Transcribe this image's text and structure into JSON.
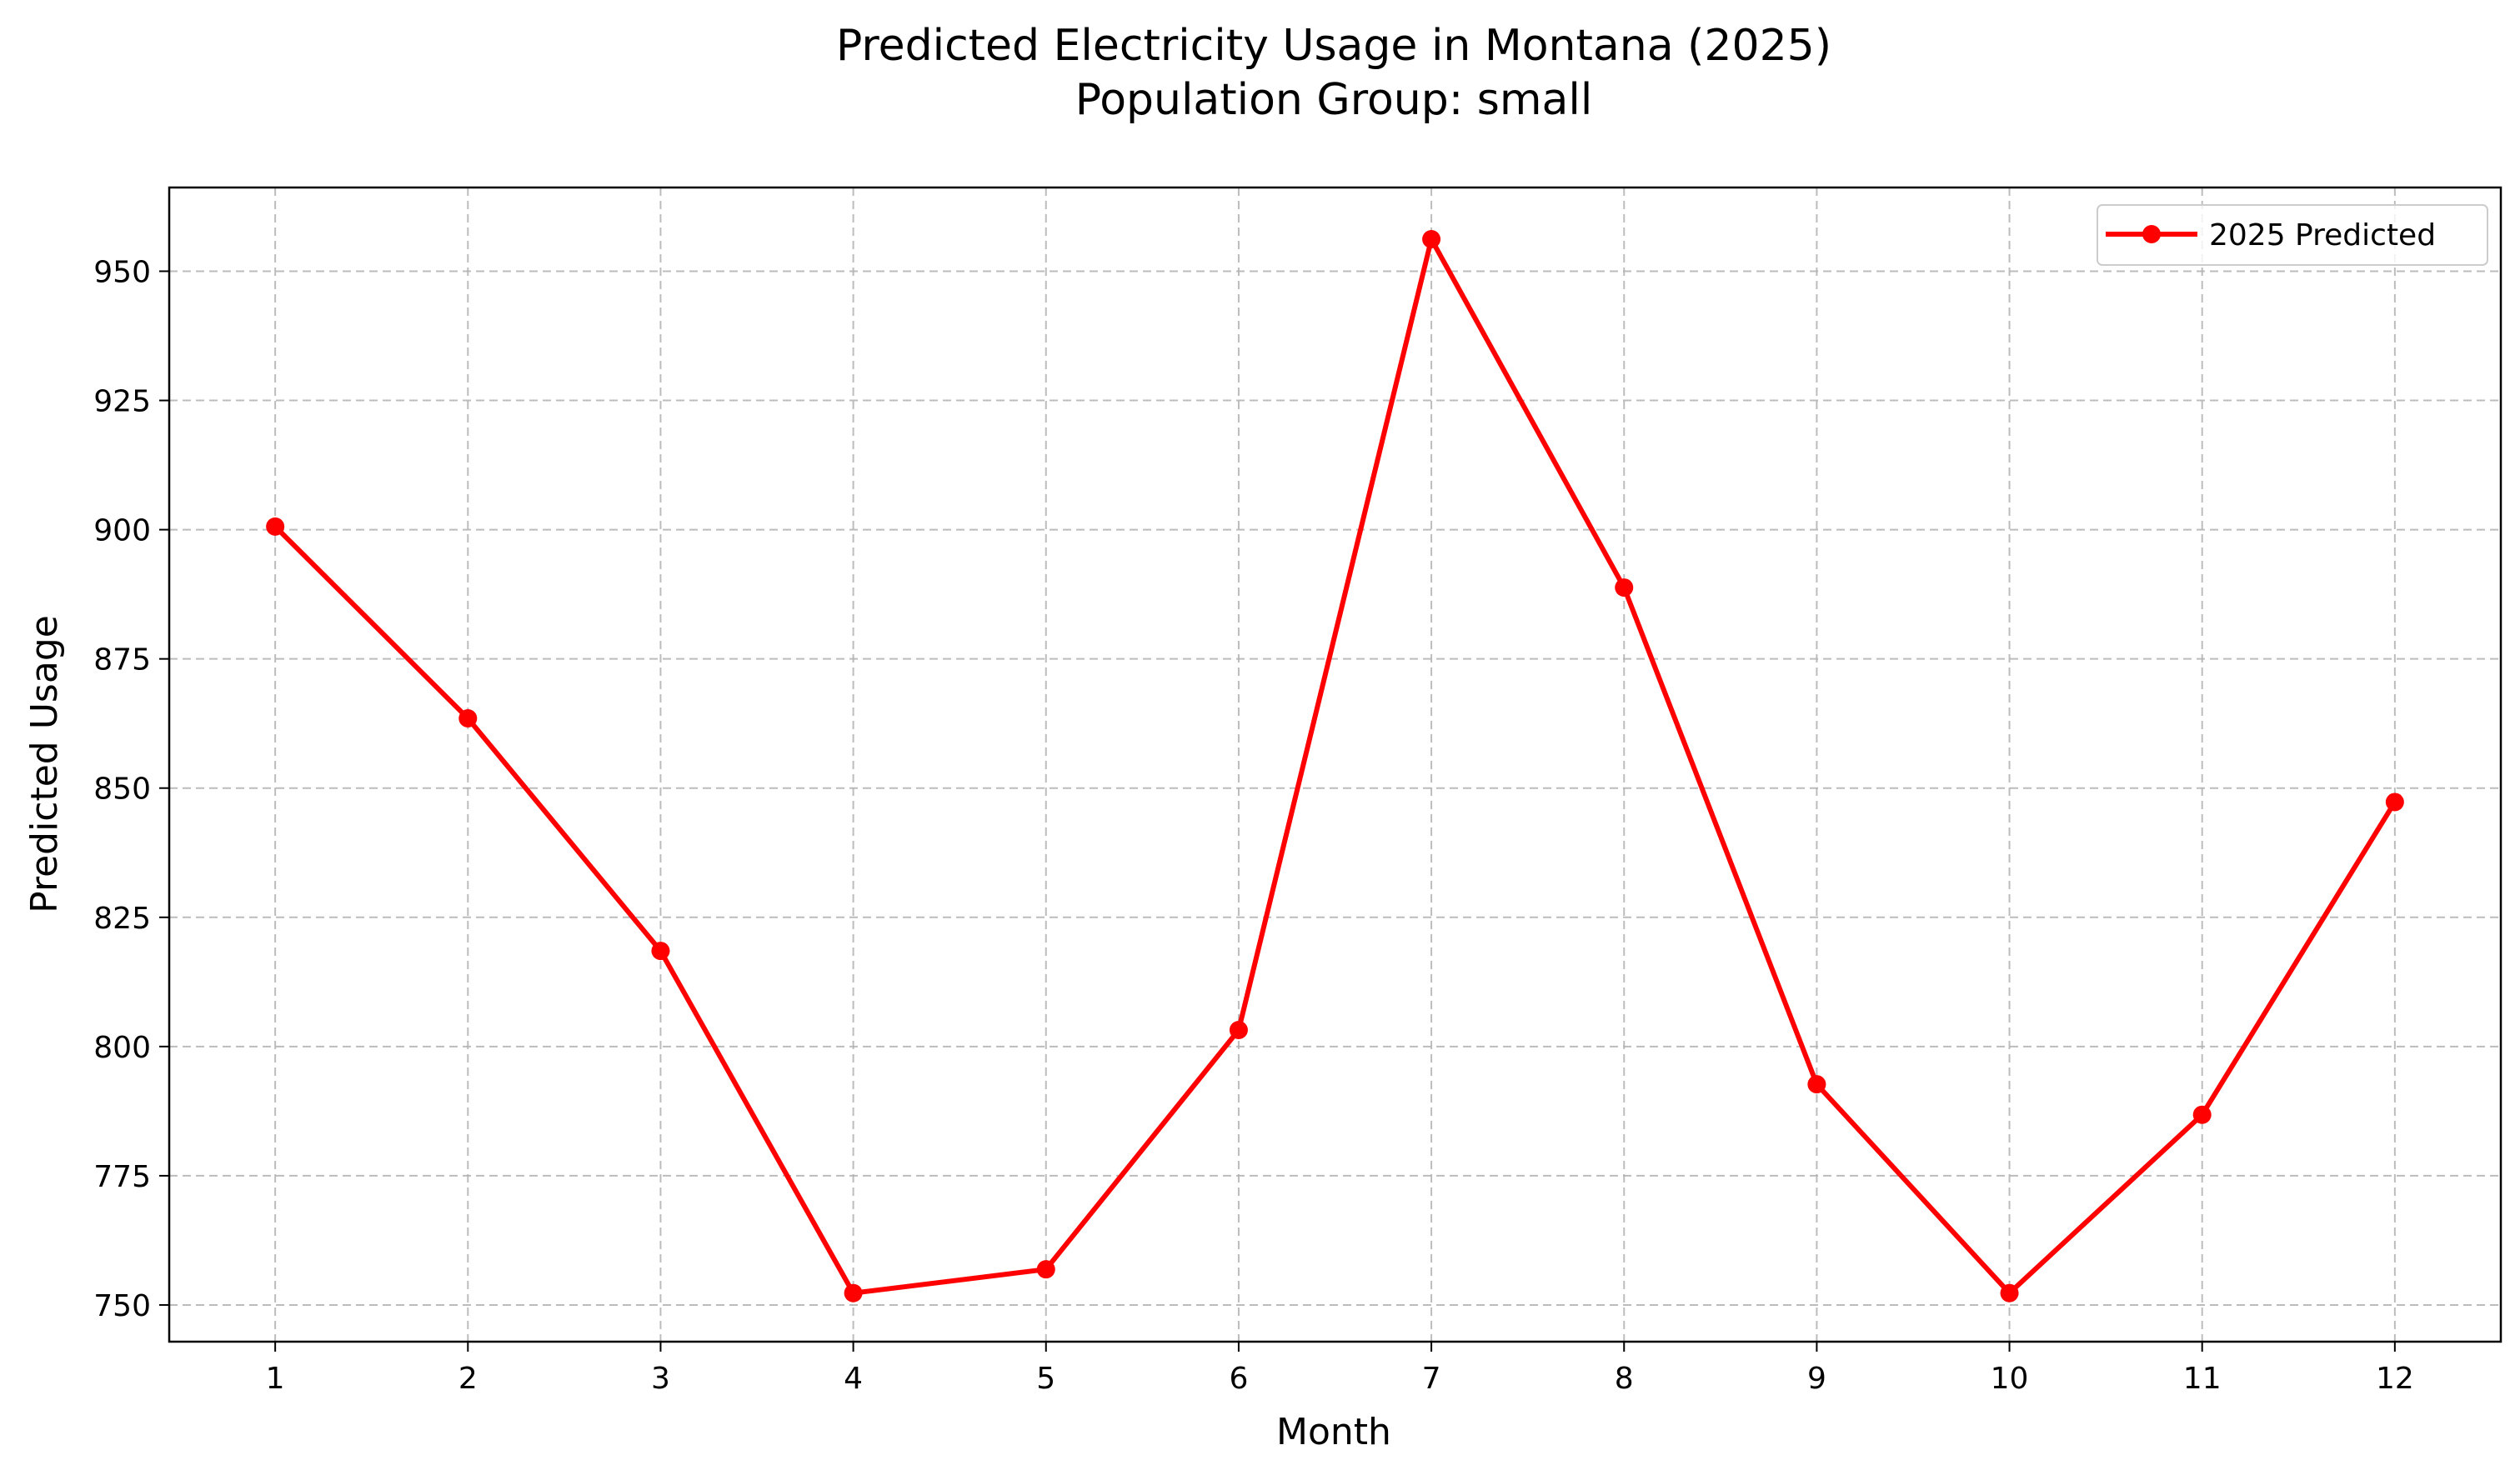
{
  "chart_data": {
    "type": "line",
    "title": "Predicted Electricity Usage in Montana (2025)",
    "subtitle": "Population Group: small",
    "xlabel": "Month",
    "ylabel": "Predicted Usage",
    "x": [
      1,
      2,
      3,
      4,
      5,
      6,
      7,
      8,
      9,
      10,
      11,
      12
    ],
    "x_ticks": [
      "1",
      "2",
      "3",
      "4",
      "5",
      "6",
      "7",
      "8",
      "9",
      "10",
      "11",
      "12"
    ],
    "y_ticks": [
      "750",
      "775",
      "800",
      "825",
      "850",
      "875",
      "900",
      "925",
      "950"
    ],
    "xlim": [
      0.45,
      12.55
    ],
    "ylim": [
      742.9,
      966.2
    ],
    "grid": true,
    "legend_position": "top-right",
    "series": [
      {
        "name": "2025 Predicted",
        "color": "#ff0000",
        "marker": "circle",
        "values": [
          900.6,
          863.5,
          818.5,
          752.3,
          756.9,
          803.2,
          956.2,
          888.8,
          792.7,
          752.3,
          786.8,
          847.3
        ]
      }
    ]
  }
}
